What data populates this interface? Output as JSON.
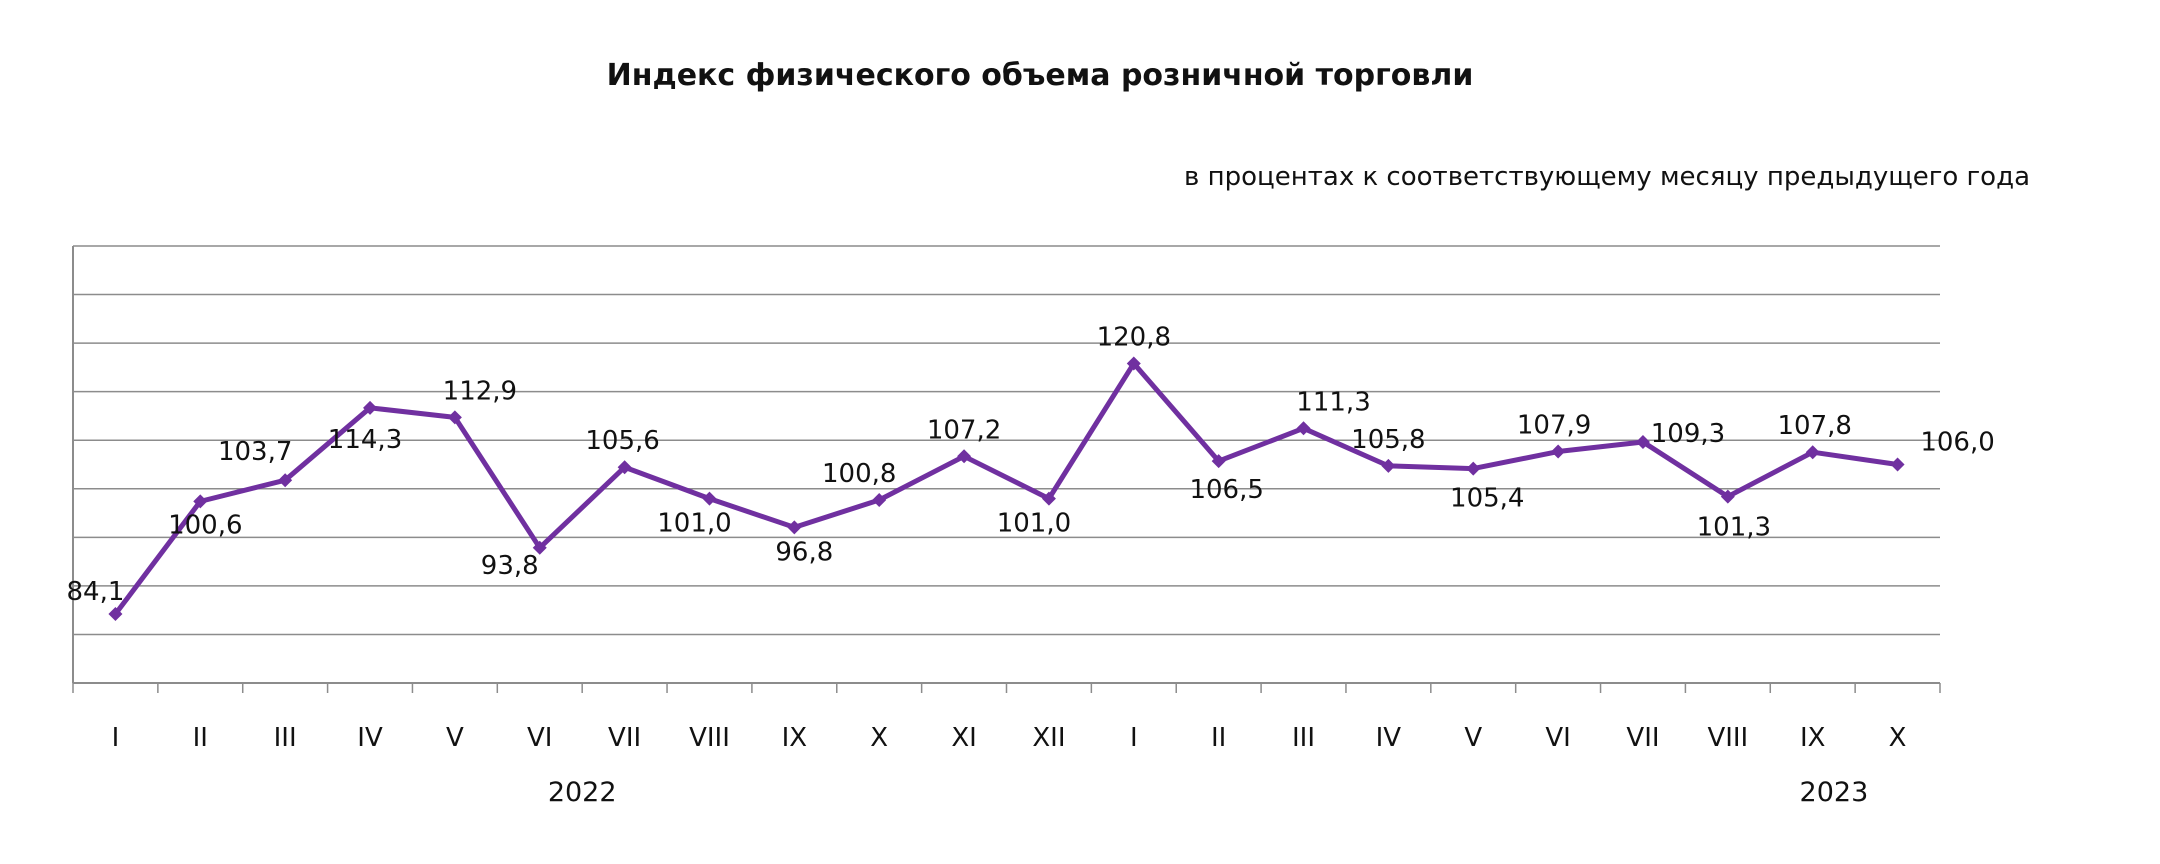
{
  "title": "Индекс физического объема розничной торговли",
  "subtitle": "в процентах к соответствующему месяцу предыдущего года",
  "chart_data": {
    "type": "line",
    "title": "Индекс физического объема розничной торговли",
    "subtitle": "в процентах к соответствующему месяцу предыдущего года",
    "categories": [
      "I",
      "II",
      "III",
      "IV",
      "V",
      "VI",
      "VII",
      "VIII",
      "IX",
      "X",
      "XI",
      "XII",
      "I",
      "II",
      "III",
      "IV",
      "V",
      "VI",
      "VII",
      "VIII",
      "IX",
      "X"
    ],
    "category_groups": [
      {
        "label": "2022",
        "start": 0,
        "end": 11
      },
      {
        "label": "2023",
        "start": 12,
        "end": 21
      }
    ],
    "series": [
      {
        "values": [
          84.1,
          100.6,
          103.7,
          114.3,
          112.9,
          93.8,
          105.6,
          101.0,
          96.8,
          100.8,
          107.2,
          101.0,
          120.8,
          106.5,
          111.3,
          105.8,
          105.4,
          107.9,
          109.3,
          101.3,
          107.8,
          106.0
        ],
        "labels": [
          "84,1",
          "100,6",
          "103,7",
          "114,3",
          "112,9",
          "93,8",
          "105,6",
          "101,0",
          "96,8",
          "100,8",
          "107,2",
          "101,0",
          "120,8",
          "106,5",
          "111,3",
          "105,8",
          "105,4",
          "107,9",
          "109,3",
          "101,3",
          "107,8",
          "106,0"
        ],
        "color": "#7030a0"
      }
    ],
    "ylim": [
      74,
      138
    ],
    "grid": true,
    "legend": "none"
  }
}
